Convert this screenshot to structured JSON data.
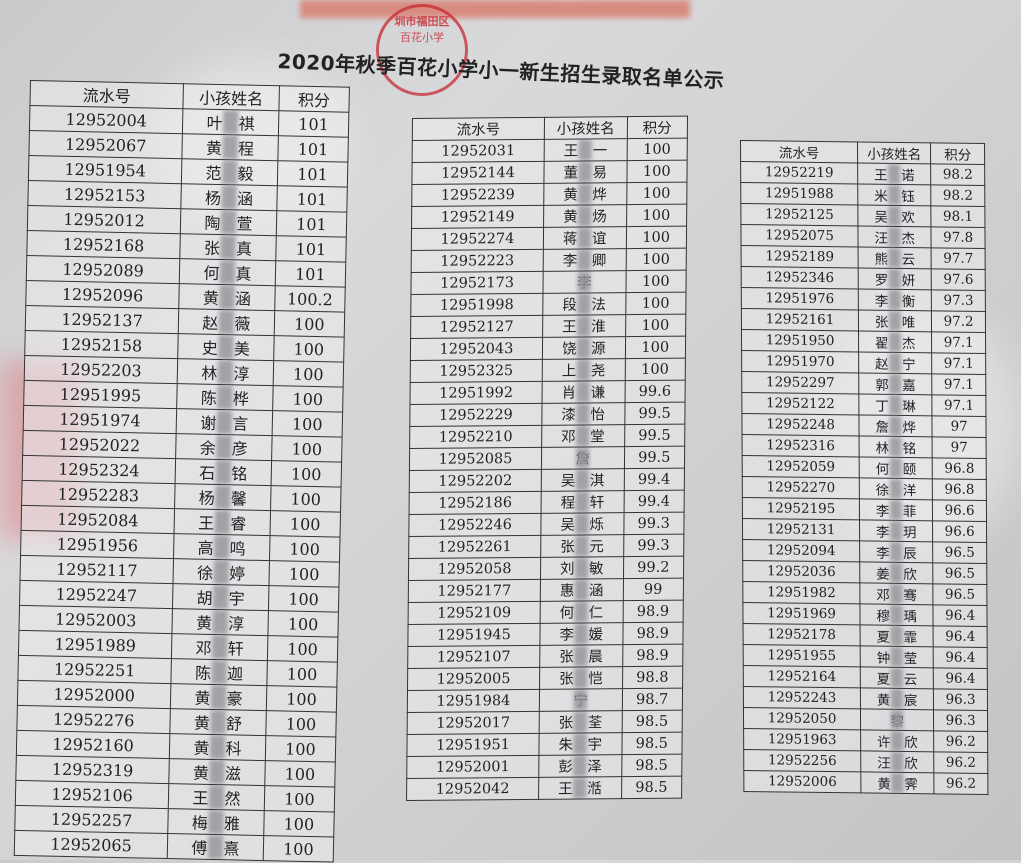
{
  "title": "2020年秋季百花小学小一新生招生录取名单公示",
  "stamp": {
    "line1": "圳市福田区",
    "line2": "百花小学"
  },
  "headers": [
    "流水号",
    "小孩姓名",
    "积分"
  ],
  "tables": [
    {
      "rows": [
        [
          "12952004",
          "叶　祺",
          "101"
        ],
        [
          "12952067",
          "黄　程",
          "101"
        ],
        [
          "12951954",
          "范　毅",
          "101"
        ],
        [
          "12952153",
          "杨　涵",
          "101"
        ],
        [
          "12952012",
          "陶　萱",
          "101"
        ],
        [
          "12952168",
          "张　真",
          "101"
        ],
        [
          "12952089",
          "何　真",
          "101"
        ],
        [
          "12952096",
          "黄　涵",
          "100.2"
        ],
        [
          "12952137",
          "赵　薇",
          "100"
        ],
        [
          "12952158",
          "史　美",
          "100"
        ],
        [
          "12952203",
          "林　淳",
          "100"
        ],
        [
          "12951995",
          "陈　桦",
          "100"
        ],
        [
          "12951974",
          "谢　言",
          "100"
        ],
        [
          "12952022",
          "余　彦",
          "100"
        ],
        [
          "12952324",
          "石　铭",
          "100"
        ],
        [
          "12952283",
          "杨　馨",
          "100"
        ],
        [
          "12952084",
          "王　睿",
          "100"
        ],
        [
          "12951956",
          "高　鸣",
          "100"
        ],
        [
          "12952117",
          "徐　婷",
          "100"
        ],
        [
          "12952247",
          "胡　宇",
          "100"
        ],
        [
          "12952003",
          "黄　淳",
          "100"
        ],
        [
          "12951989",
          "邓　轩",
          "100"
        ],
        [
          "12952251",
          "陈　迦",
          "100"
        ],
        [
          "12952000",
          "黄　豪",
          "100"
        ],
        [
          "12952276",
          "黄　舒",
          "100"
        ],
        [
          "12952160",
          "黄　科",
          "100"
        ],
        [
          "12952319",
          "黄　滋",
          "100"
        ],
        [
          "12952106",
          "王　然",
          "100"
        ],
        [
          "12952257",
          "梅　雅",
          "100"
        ],
        [
          "12952065",
          "傅　熹",
          "100"
        ]
      ]
    },
    {
      "rows": [
        [
          "12952031",
          "王　一",
          "100"
        ],
        [
          "12952144",
          "董　易",
          "100"
        ],
        [
          "12952239",
          "黄　烨",
          "100"
        ],
        [
          "12952149",
          "黄　炀",
          "100"
        ],
        [
          "12952274",
          "蒋　谊",
          "100"
        ],
        [
          "12952223",
          "李　卿",
          "100"
        ],
        [
          "12952173",
          "李",
          "100"
        ],
        [
          "12951998",
          "段　法",
          "100"
        ],
        [
          "12952127",
          "王　淮",
          "100"
        ],
        [
          "12952043",
          "饶　源",
          "100"
        ],
        [
          "12952325",
          "上　尧",
          "100"
        ],
        [
          "12951992",
          "肖　谦",
          "99.6"
        ],
        [
          "12952229",
          "漆　怡",
          "99.5"
        ],
        [
          "12952210",
          "邓　堂",
          "99.5"
        ],
        [
          "12952085",
          "詹",
          "99.5"
        ],
        [
          "12952202",
          "吴　淇",
          "99.4"
        ],
        [
          "12952186",
          "程　轩",
          "99.4"
        ],
        [
          "12952246",
          "吴　烁",
          "99.3"
        ],
        [
          "12952261",
          "张　元",
          "99.3"
        ],
        [
          "12952058",
          "刘　敏",
          "99.2"
        ],
        [
          "12952177",
          "惠　涵",
          "99"
        ],
        [
          "12952109",
          "何　仁",
          "98.9"
        ],
        [
          "12951945",
          "李　媛",
          "98.9"
        ],
        [
          "12952107",
          "张　晨",
          "98.9"
        ],
        [
          "12952005",
          "张　恺",
          "98.8"
        ],
        [
          "12951984",
          "宁",
          "98.7"
        ],
        [
          "12952017",
          "张　荃",
          "98.5"
        ],
        [
          "12951951",
          "朱　宇",
          "98.5"
        ],
        [
          "12952001",
          "彭　泽",
          "98.5"
        ],
        [
          "12952042",
          "王　湉",
          "98.5"
        ]
      ]
    },
    {
      "rows": [
        [
          "12952219",
          "王　诺",
          "98.2"
        ],
        [
          "12951988",
          "米　钰",
          "98.2"
        ],
        [
          "12952125",
          "吴　欢",
          "98.1"
        ],
        [
          "12952075",
          "汪　杰",
          "97.8"
        ],
        [
          "12952189",
          "熊　云",
          "97.7"
        ],
        [
          "12952346",
          "罗　妍",
          "97.6"
        ],
        [
          "12951976",
          "李　衡",
          "97.3"
        ],
        [
          "12952161",
          "张　唯",
          "97.2"
        ],
        [
          "12951950",
          "翟　杰",
          "97.1"
        ],
        [
          "12951970",
          "赵　宁",
          "97.1"
        ],
        [
          "12952297",
          "郭　嘉",
          "97.1"
        ],
        [
          "12952122",
          "丁　琳",
          "97.1"
        ],
        [
          "12952248",
          "詹　烨",
          "97"
        ],
        [
          "12952316",
          "林　铭",
          "97"
        ],
        [
          "12952059",
          "何　颐",
          "96.8"
        ],
        [
          "12952270",
          "徐　洋",
          "96.8"
        ],
        [
          "12952195",
          "李　菲",
          "96.6"
        ],
        [
          "12952131",
          "李　玥",
          "96.6"
        ],
        [
          "12952094",
          "李　辰",
          "96.5"
        ],
        [
          "12952036",
          "姜　欣",
          "96.5"
        ],
        [
          "12951982",
          "邓　骞",
          "96.5"
        ],
        [
          "12951969",
          "穆　瑀",
          "96.4"
        ],
        [
          "12952178",
          "夏　霏",
          "96.4"
        ],
        [
          "12951955",
          "钟　莹",
          "96.4"
        ],
        [
          "12952164",
          "夏　云",
          "96.4"
        ],
        [
          "12952243",
          "黄　宸",
          "96.3"
        ],
        [
          "12952050",
          "黎",
          "96.3"
        ],
        [
          "12951963",
          "许　欣",
          "96.2"
        ],
        [
          "12952256",
          "汪　欣",
          "96.2"
        ],
        [
          "12952006",
          "黄　霁",
          "96.2"
        ]
      ]
    }
  ]
}
